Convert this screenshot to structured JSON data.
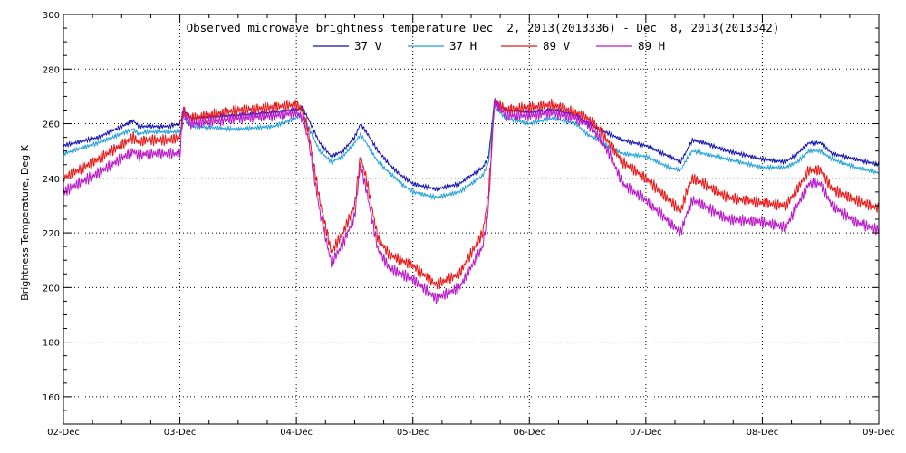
{
  "chart_data": {
    "type": "line",
    "title": "Observed microwave brightness temperature Dec  2, 2013(2013336) - Dec  8, 2013(2013342)",
    "xlabel": "",
    "ylabel": "Brightness Temperature, Deg K",
    "ylim": [
      150,
      300
    ],
    "yticks": [
      160,
      180,
      200,
      220,
      240,
      260,
      280,
      300
    ],
    "xlim": [
      0,
      7
    ],
    "xticks": [
      0,
      1,
      2,
      3,
      4,
      5,
      6,
      7
    ],
    "xtick_labels": [
      "02-Dec",
      "03-Dec",
      "04-Dec",
      "05-Dec",
      "06-Dec",
      "07-Dec",
      "08-Dec",
      "09-Dec"
    ],
    "x_unit": "days since 02-Dec",
    "grid": true,
    "legend_position": "top-center",
    "series": [
      {
        "name": "37 V",
        "color": "#1010b0",
        "x": [
          0,
          0.3,
          0.6,
          0.65,
          0.7,
          0.9,
          1.0,
          1.03,
          1.05,
          1.1,
          1.5,
          1.8,
          2.0,
          2.05,
          2.1,
          2.2,
          2.3,
          2.4,
          2.5,
          2.55,
          2.6,
          2.7,
          2.8,
          2.9,
          3.0,
          3.2,
          3.4,
          3.6,
          3.65,
          3.7,
          3.8,
          4.0,
          4.2,
          4.4,
          4.5,
          4.6,
          4.7,
          4.8,
          5.0,
          5.2,
          5.3,
          5.35,
          5.4,
          5.5,
          5.7,
          6.0,
          6.2,
          6.3,
          6.4,
          6.5,
          6.6,
          6.8,
          7.0
        ],
        "values": [
          252,
          255,
          261,
          259,
          259,
          259,
          260,
          265,
          264,
          262,
          263,
          264,
          265,
          266,
          262,
          253,
          248,
          250,
          255,
          260,
          257,
          250,
          245,
          241,
          238,
          236,
          238,
          244,
          248,
          268,
          265,
          264,
          265,
          263,
          260,
          258,
          256,
          254,
          252,
          248,
          246,
          250,
          254,
          253,
          250,
          247,
          246,
          249,
          253,
          253,
          249,
          247,
          245
        ]
      },
      {
        "name": "37 H",
        "color": "#20a0d8",
        "x": [
          0,
          0.3,
          0.6,
          0.65,
          0.7,
          0.9,
          1.0,
          1.03,
          1.05,
          1.1,
          1.5,
          1.8,
          2.0,
          2.05,
          2.1,
          2.2,
          2.3,
          2.4,
          2.5,
          2.55,
          2.6,
          2.7,
          2.8,
          2.9,
          3.0,
          3.2,
          3.4,
          3.6,
          3.65,
          3.7,
          3.8,
          4.0,
          4.2,
          4.4,
          4.5,
          4.6,
          4.7,
          4.8,
          5.0,
          5.2,
          5.3,
          5.35,
          5.4,
          5.5,
          5.7,
          6.0,
          6.2,
          6.3,
          6.4,
          6.5,
          6.6,
          6.8,
          7.0
        ],
        "values": [
          249,
          253,
          258,
          256,
          257,
          257,
          257,
          263,
          261,
          259,
          258,
          259,
          262,
          265,
          259,
          250,
          246,
          248,
          253,
          256,
          253,
          246,
          242,
          238,
          235,
          233,
          235,
          241,
          246,
          266,
          262,
          260,
          262,
          260,
          256,
          254,
          251,
          249,
          248,
          244,
          243,
          247,
          250,
          249,
          247,
          244,
          244,
          246,
          250,
          250,
          247,
          244,
          242
        ]
      },
      {
        "name": "89 V",
        "color": "#e81818",
        "x": [
          0,
          0.3,
          0.6,
          0.65,
          0.7,
          0.9,
          1.0,
          1.03,
          1.05,
          1.1,
          1.5,
          1.8,
          2.0,
          2.05,
          2.1,
          2.2,
          2.3,
          2.4,
          2.5,
          2.55,
          2.6,
          2.7,
          2.8,
          2.9,
          3.0,
          3.2,
          3.4,
          3.6,
          3.65,
          3.7,
          3.8,
          4.0,
          4.2,
          4.4,
          4.5,
          4.6,
          4.7,
          4.8,
          5.0,
          5.2,
          5.3,
          5.35,
          5.4,
          5.5,
          5.7,
          6.0,
          6.2,
          6.3,
          6.4,
          6.5,
          6.6,
          6.8,
          7.0
        ],
        "values": [
          240,
          247,
          255,
          253,
          254,
          254,
          255,
          265,
          263,
          262,
          265,
          266,
          267,
          265,
          258,
          232,
          213,
          220,
          230,
          248,
          240,
          218,
          212,
          210,
          208,
          201,
          205,
          220,
          235,
          268,
          265,
          266,
          267,
          264,
          262,
          258,
          252,
          246,
          240,
          232,
          228,
          235,
          240,
          238,
          233,
          231,
          230,
          236,
          243,
          243,
          236,
          232,
          229
        ]
      },
      {
        "name": "89 H",
        "color": "#b818c8",
        "x": [
          0,
          0.3,
          0.6,
          0.65,
          0.7,
          0.9,
          1.0,
          1.03,
          1.05,
          1.1,
          1.5,
          1.8,
          2.0,
          2.05,
          2.1,
          2.2,
          2.3,
          2.4,
          2.5,
          2.55,
          2.6,
          2.7,
          2.8,
          2.9,
          3.0,
          3.2,
          3.4,
          3.6,
          3.65,
          3.7,
          3.8,
          4.0,
          4.2,
          4.4,
          4.5,
          4.6,
          4.7,
          4.8,
          5.0,
          5.2,
          5.3,
          5.35,
          5.4,
          5.5,
          5.7,
          6.0,
          6.2,
          6.3,
          6.4,
          6.5,
          6.6,
          6.8,
          7.0
        ],
        "values": [
          235,
          242,
          250,
          248,
          249,
          249,
          249,
          265,
          262,
          260,
          262,
          263,
          264,
          262,
          255,
          228,
          209,
          216,
          226,
          245,
          236,
          214,
          207,
          205,
          203,
          196,
          200,
          215,
          230,
          268,
          263,
          263,
          264,
          262,
          260,
          255,
          248,
          238,
          232,
          224,
          220,
          227,
          232,
          230,
          225,
          224,
          222,
          230,
          238,
          238,
          230,
          224,
          221
        ]
      }
    ]
  }
}
